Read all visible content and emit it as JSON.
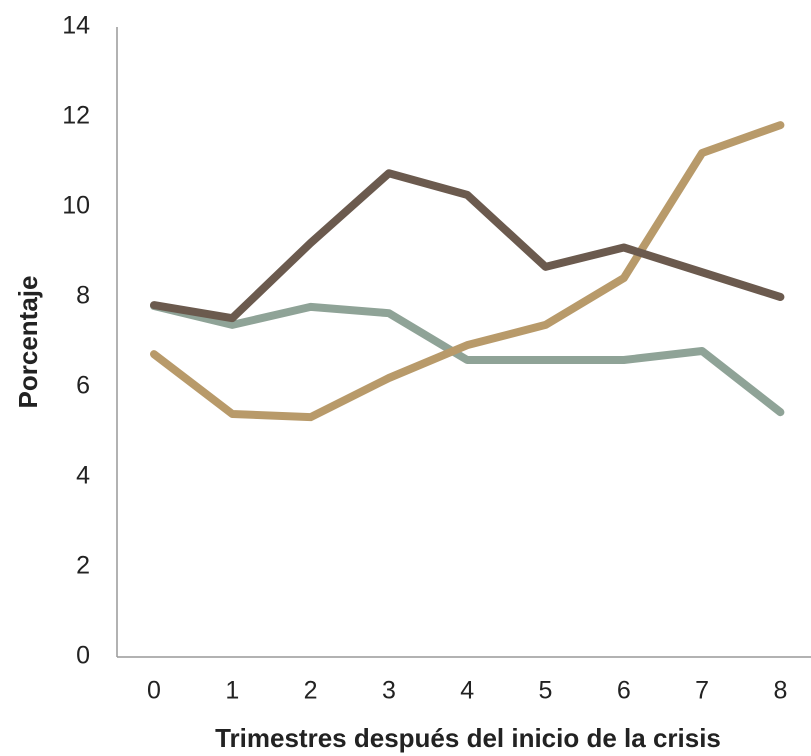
{
  "chart_data": {
    "type": "line",
    "x_label": "Trimestres después del inicio de la crisis",
    "y_label": "Porcentaje",
    "categories": [
      "0",
      "1",
      "2",
      "3",
      "4",
      "5",
      "6",
      "7",
      "8"
    ],
    "series": [
      {
        "color": "#8fa397",
        "values": [
          7.8,
          7.38,
          7.78,
          7.64,
          6.6,
          6.6,
          6.6,
          6.8,
          5.44
        ]
      },
      {
        "color": "#b89a6a",
        "values": [
          6.73,
          5.4,
          5.33,
          6.2,
          6.93,
          7.38,
          8.42,
          11.2,
          11.82
        ]
      },
      {
        "color": "#6b5a4e",
        "values": [
          7.82,
          7.53,
          9.2,
          10.75,
          10.27,
          8.67,
          9.1,
          8.55,
          8.0
        ]
      }
    ],
    "ylim": [
      0,
      14
    ],
    "yticks": [
      0,
      2,
      4,
      6,
      8,
      10,
      12,
      14
    ],
    "grid": false
  }
}
